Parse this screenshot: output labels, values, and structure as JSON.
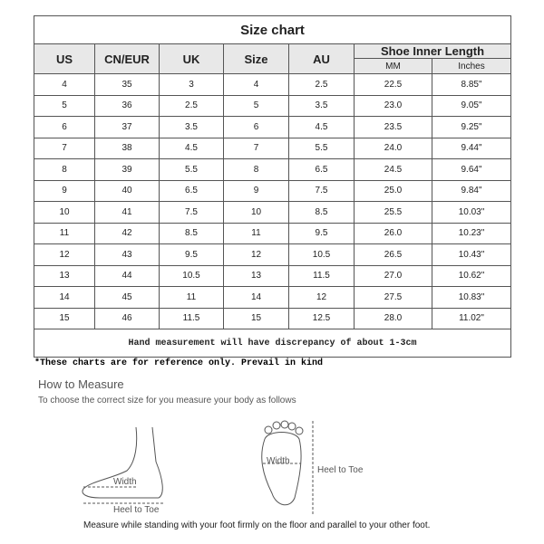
{
  "title": "Size chart",
  "headers": {
    "us": "US",
    "cn_eur": "CN/EUR",
    "uk": "UK",
    "size": "Size",
    "au": "AU",
    "inner": "Shoe Inner Length",
    "mm": "MM",
    "inches": "Inches"
  },
  "rows": [
    [
      "4",
      "35",
      "3",
      "4",
      "2.5",
      "22.5",
      "8.85\""
    ],
    [
      "5",
      "36",
      "2.5",
      "5",
      "3.5",
      "23.0",
      "9.05\""
    ],
    [
      "6",
      "37",
      "3.5",
      "6",
      "4.5",
      "23.5",
      "9.25\""
    ],
    [
      "7",
      "38",
      "4.5",
      "7",
      "5.5",
      "24.0",
      "9.44\""
    ],
    [
      "8",
      "39",
      "5.5",
      "8",
      "6.5",
      "24.5",
      "9.64\""
    ],
    [
      "9",
      "40",
      "6.5",
      "9",
      "7.5",
      "25.0",
      "9.84\""
    ],
    [
      "10",
      "41",
      "7.5",
      "10",
      "8.5",
      "25.5",
      "10.03\""
    ],
    [
      "11",
      "42",
      "8.5",
      "11",
      "9.5",
      "26.0",
      "10.23\""
    ],
    [
      "12",
      "43",
      "9.5",
      "12",
      "10.5",
      "26.5",
      "10.43\""
    ],
    [
      "13",
      "44",
      "10.5",
      "13",
      "11.5",
      "27.0",
      "10.62\""
    ],
    [
      "14",
      "45",
      "11",
      "14",
      "12",
      "27.5",
      "10.83\""
    ],
    [
      "15",
      "46",
      "11.5",
      "15",
      "12.5",
      "28.0",
      "11.02\""
    ]
  ],
  "footer": "Hand measurement will have discrepancy of about 1-3cm",
  "note": "*These charts are for reference only. Prevail in kind",
  "how_title": "How to Measure",
  "how_sub": "To choose the correct size for you measure your body as follows",
  "labels": {
    "width1": "Width",
    "heel1": "Heel to Toe",
    "width2": "Width",
    "heel2": "Heel to Toe"
  },
  "caption": "Measure while standing with your foot firmly on the floor and parallel to your other foot."
}
